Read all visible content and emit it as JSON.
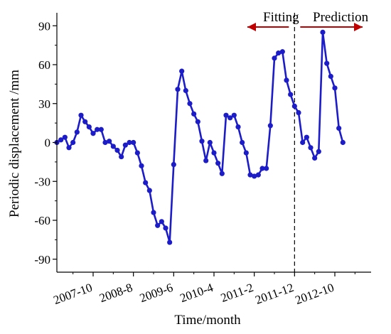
{
  "chart_data": {
    "type": "line",
    "xlabel": "Time/month",
    "ylabel": "Periodic displacement /mm",
    "ylim": [
      -100,
      100
    ],
    "yticks": [
      -90,
      -60,
      -30,
      0,
      30,
      60,
      90
    ],
    "ytick_labels": [
      "-90",
      "-60",
      "-30",
      "0",
      "30",
      "60",
      "90"
    ],
    "xtick_labels": [
      "2007-10",
      "2008-8",
      "2009-6",
      "2010-4",
      "2011-2",
      "2011-12",
      "2012-10"
    ],
    "x_start": "2007-01",
    "x_end": "2013-07",
    "grid": false,
    "legend": "none",
    "color": "#1c1cc8",
    "divider_at": "2011-12",
    "annotations": {
      "fitting": "Fitting",
      "prediction": "Prediction",
      "arrow_color": "#c00000"
    },
    "series": [
      {
        "x": [
          "2007-01",
          "2007-02",
          "2007-03",
          "2007-04",
          "2007-05",
          "2007-06",
          "2007-07",
          "2007-08",
          "2007-09",
          "2007-10",
          "2007-11",
          "2007-12",
          "2008-01",
          "2008-02",
          "2008-03",
          "2008-04",
          "2008-05",
          "2008-06",
          "2008-07",
          "2008-08",
          "2008-09",
          "2008-10",
          "2008-11",
          "2008-12",
          "2009-01",
          "2009-02",
          "2009-03",
          "2009-04",
          "2009-05",
          "2009-06",
          "2009-07",
          "2009-08",
          "2009-09",
          "2009-10",
          "2009-11",
          "2009-12",
          "2010-01",
          "2010-02",
          "2010-03",
          "2010-04",
          "2010-05",
          "2010-06",
          "2010-07",
          "2010-08",
          "2010-09",
          "2010-10",
          "2010-11",
          "2010-12",
          "2011-01",
          "2011-02",
          "2011-03",
          "2011-04",
          "2011-05",
          "2011-06",
          "2011-07",
          "2011-08",
          "2011-09",
          "2011-10",
          "2011-11",
          "2011-12",
          "2012-01",
          "2012-02",
          "2012-03",
          "2012-04",
          "2012-05",
          "2012-06",
          "2012-07",
          "2012-08",
          "2012-09",
          "2012-10",
          "2012-11",
          "2012-12"
        ],
        "values": [
          0,
          2,
          4,
          -4,
          0,
          8,
          21,
          16,
          12,
          7,
          10,
          10,
          0,
          1,
          -3,
          -6,
          -11,
          -2,
          0,
          0,
          -8,
          -18,
          -31,
          -37,
          -54,
          -64,
          -61,
          -66,
          -77,
          -17,
          41,
          55,
          40,
          30,
          22,
          16,
          1,
          -14,
          0,
          -8,
          -16,
          -24,
          21,
          19,
          21,
          12,
          0,
          -8,
          -25,
          -26,
          -25,
          -20,
          -20,
          13,
          65,
          69,
          70,
          48,
          37,
          28,
          23,
          0,
          4,
          -4,
          -12,
          -7,
          85,
          61,
          51,
          42,
          11,
          0
        ]
      }
    ]
  }
}
